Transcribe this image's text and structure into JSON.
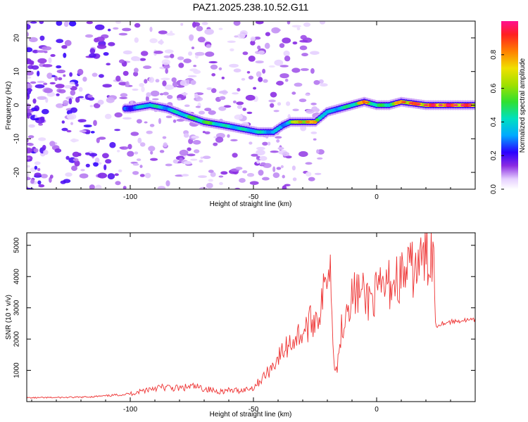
{
  "chart_data": [
    {
      "type": "heatmap",
      "title": "PAZ1.2025.238.10.52.G11",
      "xlabel": "Height of straight line (km)",
      "ylabel": "Frequency (Hz)",
      "xlim": [
        -142,
        40
      ],
      "ylim": [
        -25,
        25
      ],
      "x_ticks": [
        -100,
        -50,
        0
      ],
      "y_ticks": [
        -20,
        -10,
        0,
        10,
        20
      ],
      "colorbar": {
        "label": "Normalized spectral amplitude",
        "range": [
          0.0,
          1.0
        ],
        "ticks": [
          0.0,
          0.2,
          0.4,
          0.6,
          0.8
        ]
      },
      "ridge": {
        "description_points_x": [
          -100,
          -92,
          -85,
          -78,
          -70,
          -62,
          -55,
          -48,
          -42,
          -38,
          -35,
          -30,
          -25,
          -20,
          -15,
          -10,
          -5,
          0,
          5,
          10,
          20,
          30,
          40
        ],
        "frequency": [
          -1,
          0,
          -1,
          -3,
          -5,
          -6,
          -7,
          -8,
          -8,
          -6,
          -5,
          -5,
          -5,
          -2,
          -1,
          0,
          1,
          0,
          0,
          1,
          0,
          0,
          0
        ],
        "amplitude": [
          0.3,
          0.5,
          0.4,
          0.5,
          0.6,
          0.45,
          0.45,
          0.45,
          0.4,
          0.35,
          0.55,
          0.8,
          0.75,
          0.35,
          0.45,
          0.5,
          0.85,
          0.5,
          0.55,
          0.85,
          0.9,
          0.95,
          0.9
        ]
      }
    },
    {
      "type": "line",
      "xlabel": "Height of straight line (km)",
      "ylabel": "SNR (10 * v/v)",
      "xlim": [
        -142,
        40
      ],
      "ylim": [
        0,
        5400
      ],
      "x_ticks": [
        -100,
        -50,
        0
      ],
      "y_ticks": [
        1000,
        2000,
        3000,
        4000,
        5000
      ],
      "series": [
        {
          "name": "SNR",
          "color": "#ee3333",
          "x": [
            -142,
            -130,
            -120,
            -110,
            -100,
            -95,
            -90,
            -85,
            -80,
            -75,
            -70,
            -65,
            -60,
            -55,
            -50,
            -47,
            -44,
            -41,
            -38,
            -35,
            -32,
            -29,
            -26,
            -23,
            -21,
            -20,
            -19,
            -18,
            -17,
            -16,
            -15,
            -12,
            -8,
            -4,
            0,
            4,
            8,
            12,
            16,
            20,
            22,
            23,
            24,
            26,
            30,
            35,
            40
          ],
          "values": [
            120,
            130,
            140,
            180,
            250,
            350,
            450,
            450,
            420,
            480,
            420,
            330,
            350,
            360,
            450,
            700,
            950,
            1300,
            1600,
            1900,
            2100,
            2300,
            2600,
            2900,
            3600,
            4400,
            4700,
            2600,
            1200,
            1000,
            2000,
            3200,
            3500,
            3300,
            3400,
            3700,
            3900,
            4100,
            4300,
            4600,
            4800,
            5000,
            2400,
            2500,
            2550,
            2600,
            2600
          ]
        }
      ]
    }
  ]
}
